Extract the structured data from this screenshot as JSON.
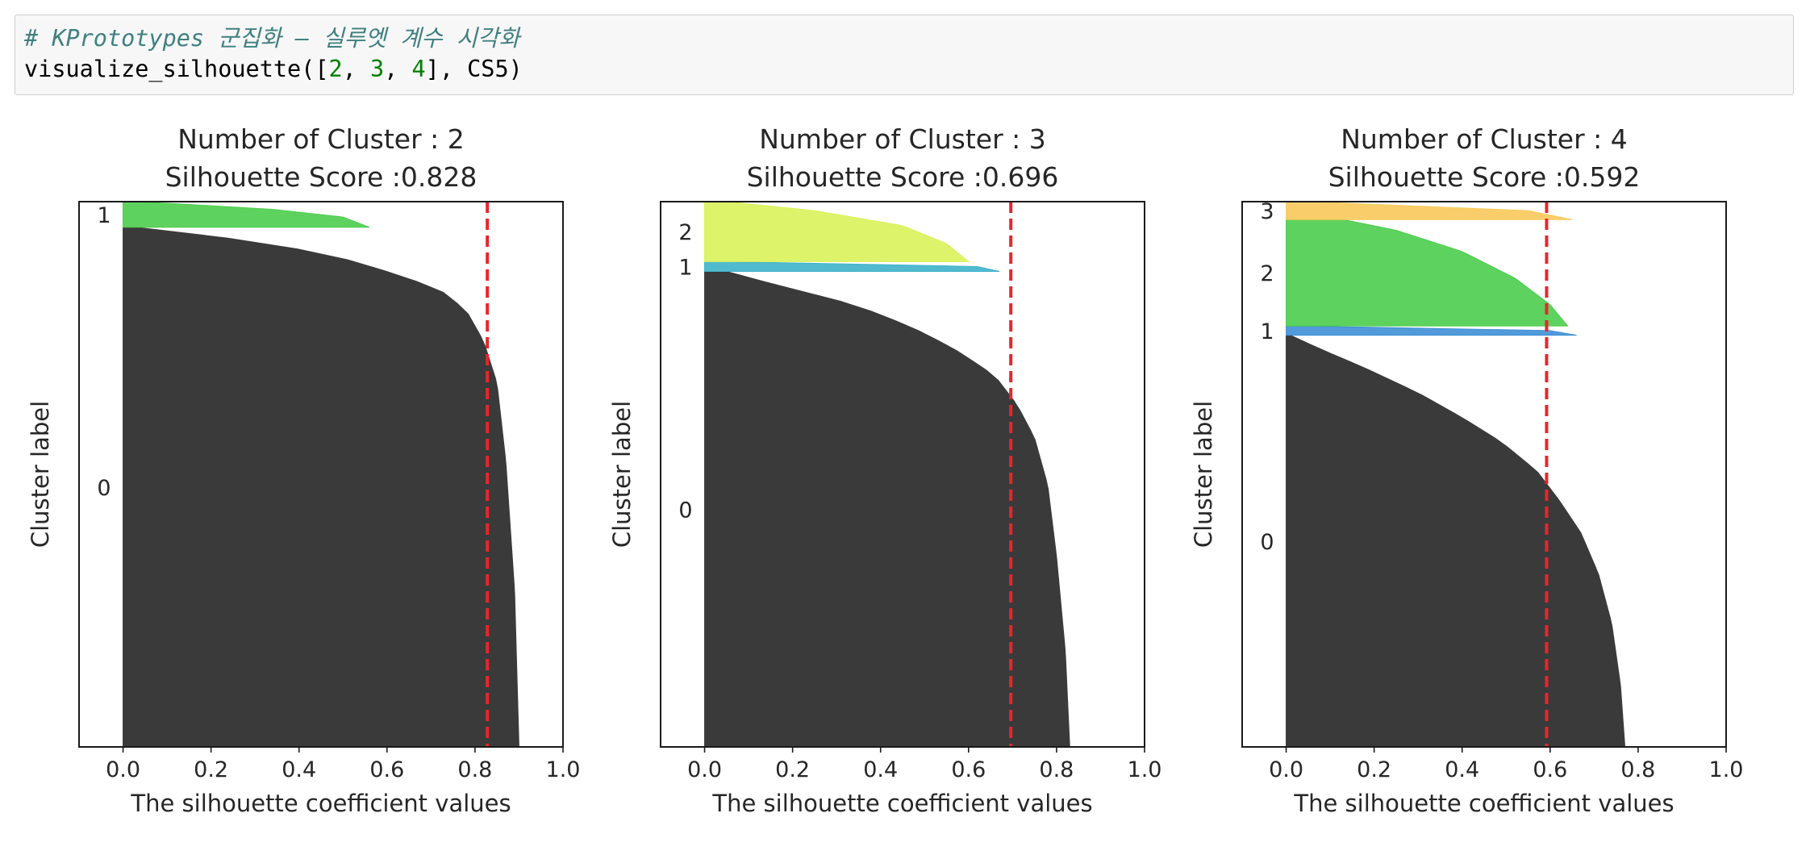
{
  "cell": {
    "comment": "# KPrototypes 군집화 – 실루엣 계수 시각화",
    "code_tokens": [
      {
        "t": "visualize_silhouette([",
        "k": "text"
      },
      {
        "t": "2",
        "k": "num"
      },
      {
        "t": ", ",
        "k": "text"
      },
      {
        "t": "3",
        "k": "num"
      },
      {
        "t": ", ",
        "k": "text"
      },
      {
        "t": "4",
        "k": "num"
      },
      {
        "t": "], CS5)",
        "k": "text"
      }
    ]
  },
  "colors": {
    "avg_line": "#e8262b",
    "dark": "#3a3a3a",
    "green": "#4ccd4c",
    "yellow_green": "#d9f25a",
    "cyan": "#3fb3c9",
    "blue": "#3f8fd6",
    "orange": "#f8c95a"
  },
  "chart_data": [
    {
      "type": "area",
      "title": "Number of Cluster : 2",
      "subtitle": "Silhouette Score :0.828",
      "xlabel": "The silhouette coefficient values",
      "ylabel": "Cluster label",
      "xlim": [
        -0.1,
        1.0
      ],
      "xticks": [
        0.0,
        0.2,
        0.4,
        0.6,
        0.8,
        1.0
      ],
      "xtick_labels": [
        "0.0",
        "0.2",
        "0.4",
        "0.6",
        "0.8",
        "1.0"
      ],
      "avg_score": 0.828,
      "clusters": [
        {
          "label": "0",
          "size": 0.953,
          "color": "dark",
          "profile": [
            [
              0,
              0.9
            ],
            [
              0.3,
              0.89
            ],
            [
              0.55,
              0.87
            ],
            [
              0.7,
              0.85
            ],
            [
              0.78,
              0.82
            ],
            [
              0.84,
              0.78
            ],
            [
              0.88,
              0.72
            ],
            [
              0.91,
              0.62
            ],
            [
              0.94,
              0.5
            ],
            [
              0.97,
              0.33
            ],
            [
              0.99,
              0.13
            ],
            [
              1,
              0.03
            ]
          ]
        },
        {
          "label": "1",
          "size": 0.047,
          "color": "green",
          "profile": [
            [
              0,
              0.56
            ],
            [
              0.4,
              0.5
            ],
            [
              0.7,
              0.34
            ],
            [
              0.9,
              0.14
            ],
            [
              1,
              0.03
            ]
          ]
        }
      ]
    },
    {
      "type": "area",
      "title": "Number of Cluster : 3",
      "subtitle": "Silhouette Score :0.696",
      "xlabel": "The silhouette coefficient values",
      "ylabel": "Cluster label",
      "xlim": [
        -0.1,
        1.0
      ],
      "xticks": [
        0.0,
        0.2,
        0.4,
        0.6,
        0.8,
        1.0
      ],
      "xtick_labels": [
        "0.0",
        "0.2",
        "0.4",
        "0.6",
        "0.8",
        "1.0"
      ],
      "avg_score": 0.696,
      "clusters": [
        {
          "label": "0",
          "size": 0.872,
          "color": "dark",
          "profile": [
            [
              0,
              0.83
            ],
            [
              0.2,
              0.82
            ],
            [
              0.4,
              0.8
            ],
            [
              0.55,
              0.78
            ],
            [
              0.65,
              0.75
            ],
            [
              0.72,
              0.71
            ],
            [
              0.78,
              0.66
            ],
            [
              0.83,
              0.58
            ],
            [
              0.87,
              0.5
            ],
            [
              0.91,
              0.4
            ],
            [
              0.94,
              0.3
            ],
            [
              0.97,
              0.17
            ],
            [
              1,
              0.05
            ]
          ]
        },
        {
          "label": "1",
          "size": 0.018,
          "color": "cyan",
          "profile": [
            [
              0,
              0.67
            ],
            [
              0.5,
              0.62
            ],
            [
              1,
              0.05
            ]
          ]
        },
        {
          "label": "2",
          "size": 0.11,
          "color": "yellow_green",
          "profile": [
            [
              0,
              0.6
            ],
            [
              0.3,
              0.55
            ],
            [
              0.6,
              0.45
            ],
            [
              0.85,
              0.25
            ],
            [
              1,
              0.05
            ]
          ]
        }
      ]
    },
    {
      "type": "area",
      "title": "Number of Cluster : 4",
      "subtitle": "Silhouette Score :0.592",
      "xlabel": "The silhouette coefficient values",
      "ylabel": "Cluster label",
      "xlim": [
        -0.1,
        1.0
      ],
      "xticks": [
        0.0,
        0.2,
        0.4,
        0.6,
        0.8,
        1.0
      ],
      "xtick_labels": [
        "0.0",
        "0.2",
        "0.4",
        "0.6",
        "0.8",
        "1.0"
      ],
      "avg_score": 0.592,
      "clusters": [
        {
          "label": "0",
          "size": 0.755,
          "color": "dark",
          "profile": [
            [
              0,
              0.77
            ],
            [
              0.15,
              0.76
            ],
            [
              0.3,
              0.74
            ],
            [
              0.42,
              0.71
            ],
            [
              0.52,
              0.67
            ],
            [
              0.6,
              0.62
            ],
            [
              0.67,
              0.57
            ],
            [
              0.74,
              0.49
            ],
            [
              0.8,
              0.4
            ],
            [
              0.86,
              0.3
            ],
            [
              0.92,
              0.18
            ],
            [
              0.97,
              0.07
            ],
            [
              1,
              0.01
            ]
          ]
        },
        {
          "label": "1",
          "size": 0.017,
          "color": "blue",
          "profile": [
            [
              0,
              0.66
            ],
            [
              0.5,
              0.6
            ],
            [
              1,
              0.03
            ]
          ]
        },
        {
          "label": "2",
          "size": 0.195,
          "color": "green",
          "profile": [
            [
              0,
              0.64
            ],
            [
              0.2,
              0.6
            ],
            [
              0.45,
              0.52
            ],
            [
              0.7,
              0.4
            ],
            [
              0.9,
              0.25
            ],
            [
              1,
              0.13
            ]
          ]
        },
        {
          "label": "3",
          "size": 0.033,
          "color": "orange",
          "profile": [
            [
              0,
              0.65
            ],
            [
              0.5,
              0.55
            ],
            [
              1,
              0.05
            ]
          ]
        }
      ]
    }
  ]
}
